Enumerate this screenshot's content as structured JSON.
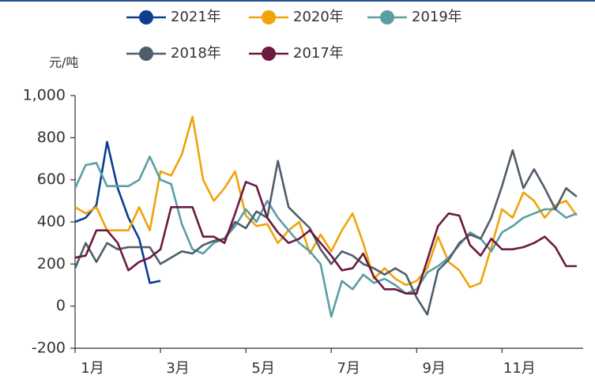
{
  "chart_data": {
    "type": "line",
    "y_label": "元/吨",
    "x": [
      1,
      1.25,
      1.5,
      1.75,
      2,
      2.25,
      2.5,
      2.75,
      3,
      3.25,
      3.5,
      3.75,
      4,
      4.25,
      4.5,
      4.75,
      5,
      5.25,
      5.5,
      5.75,
      6,
      6.25,
      6.5,
      6.75,
      7,
      7.25,
      7.5,
      7.75,
      8,
      8.25,
      8.5,
      8.75,
      9,
      9.25,
      9.5,
      9.75,
      10,
      10.25,
      10.5,
      10.75,
      11,
      11.25,
      11.5,
      11.75,
      12,
      12.25,
      12.5,
      12.75
    ],
    "xlim": [
      1,
      12.9
    ],
    "xticks": [
      {
        "value": 1,
        "label": "1月"
      },
      {
        "value": 3,
        "label": "3月"
      },
      {
        "value": 5,
        "label": "5月"
      },
      {
        "value": 7,
        "label": "7月"
      },
      {
        "value": 9,
        "label": "9月"
      },
      {
        "value": 11,
        "label": "11月"
      }
    ],
    "ylim": [
      -200,
      1000
    ],
    "yticks": [
      -200,
      0,
      200,
      400,
      600,
      800,
      {
        "value": 1000,
        "label": "1,000"
      }
    ],
    "series": [
      {
        "name": "2021年",
        "color": "#0b3d91",
        "values": [
          400,
          420,
          480,
          780,
          560,
          420,
          320,
          110,
          120,
          null,
          null,
          null,
          null,
          null,
          null,
          null,
          null,
          null,
          null,
          null,
          null,
          null,
          null,
          null,
          null,
          null,
          null,
          null,
          null,
          null,
          null,
          null,
          null,
          null,
          null,
          null,
          null,
          null,
          null,
          null,
          null,
          null,
          null,
          null,
          null,
          null,
          null,
          null
        ]
      },
      {
        "name": "2020年",
        "color": "#f0a30a",
        "values": [
          470,
          440,
          470,
          360,
          360,
          360,
          470,
          360,
          640,
          620,
          720,
          900,
          600,
          500,
          560,
          640,
          430,
          380,
          390,
          300,
          360,
          400,
          250,
          340,
          260,
          360,
          440,
          300,
          130,
          180,
          130,
          100,
          120,
          180,
          330,
          210,
          170,
          90,
          110,
          280,
          460,
          420,
          540,
          500,
          420,
          480,
          500,
          430
        ]
      },
      {
        "name": "2019年",
        "color": "#5b9ea6",
        "values": [
          560,
          670,
          680,
          570,
          570,
          570,
          600,
          710,
          600,
          580,
          390,
          270,
          250,
          300,
          320,
          380,
          460,
          400,
          500,
          420,
          360,
          300,
          260,
          200,
          -50,
          120,
          80,
          150,
          110,
          130,
          100,
          60,
          80,
          160,
          190,
          230,
          290,
          350,
          320,
          260,
          350,
          380,
          420,
          440,
          460,
          460,
          420,
          440
        ]
      },
      {
        "name": "2018年",
        "color": "#4f5d6b",
        "values": [
          180,
          300,
          210,
          300,
          270,
          280,
          280,
          280,
          200,
          230,
          260,
          250,
          290,
          310,
          320,
          400,
          370,
          450,
          420,
          690,
          470,
          420,
          370,
          270,
          200,
          260,
          240,
          200,
          180,
          150,
          180,
          150,
          40,
          -40,
          170,
          220,
          300,
          340,
          320,
          420,
          570,
          740,
          560,
          650,
          560,
          460,
          560,
          520
        ]
      },
      {
        "name": "2017年",
        "color": "#6b1a40",
        "values": [
          230,
          240,
          360,
          360,
          300,
          170,
          210,
          230,
          270,
          470,
          470,
          470,
          330,
          330,
          300,
          440,
          590,
          570,
          420,
          350,
          300,
          320,
          360,
          300,
          240,
          170,
          180,
          250,
          140,
          80,
          80,
          60,
          60,
          220,
          380,
          440,
          430,
          290,
          240,
          320,
          270,
          270,
          280,
          300,
          330,
          280,
          190,
          190
        ]
      }
    ]
  }
}
